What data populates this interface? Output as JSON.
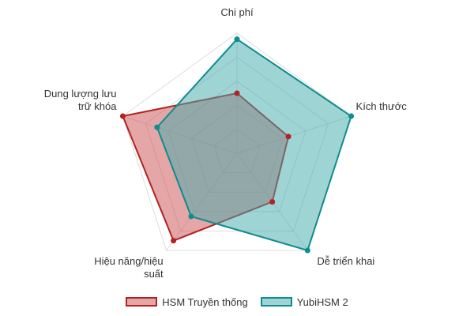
{
  "chart_data": {
    "type": "radar",
    "axes": [
      "Chi phí",
      "Kích thước",
      "Dễ triển khai",
      "Hiệu năng/hiệu suất",
      "Dung lượng lưu trữ khóa"
    ],
    "axis_label_lines": [
      [
        "Chi phí"
      ],
      [
        "Kích thước"
      ],
      [
        "Dễ triển khai"
      ],
      [
        "Hiệu năng/hiệu",
        "suất"
      ],
      [
        "Dung lượng lưu",
        "trữ khóa"
      ]
    ],
    "rmin": 0,
    "rmax": 10,
    "grid_levels": 5,
    "series": [
      {
        "name": "HSM Truyền thống",
        "values": [
          5,
          4.5,
          5,
          9,
          10
        ],
        "line_color": "#b22222",
        "fill_color": "rgba(205,92,92,0.55)"
      },
      {
        "name": "YubiHSM 2",
        "values": [
          9.5,
          10,
          10,
          6.5,
          7
        ],
        "line_color": "#0f8c8c",
        "fill_color": "rgba(64,170,172,0.5)"
      }
    ],
    "legend_position": "bottom"
  }
}
